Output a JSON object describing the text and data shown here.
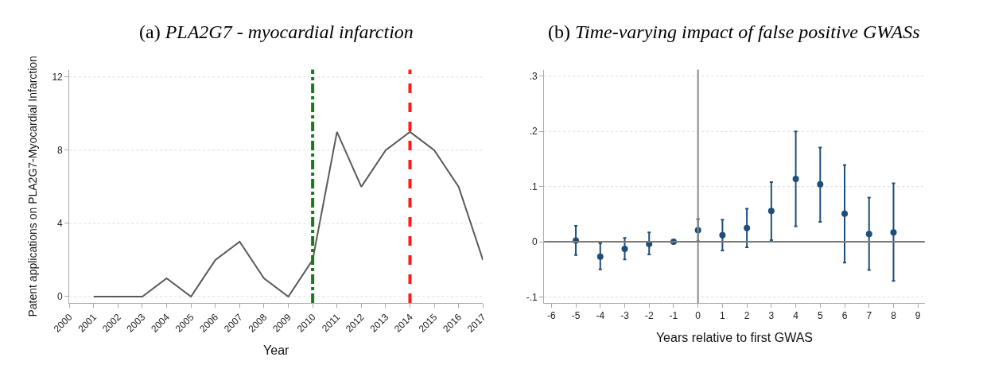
{
  "chart_data": [
    {
      "type": "line",
      "title": "(a) PLA2G7 - myocardial infarction",
      "xlabel": "Year",
      "ylabel": "Patent applications on PLA2G7-Myocardial Infarction",
      "x": [
        2001,
        2002,
        2003,
        2004,
        2005,
        2006,
        2007,
        2008,
        2009,
        2010,
        2011,
        2012,
        2013,
        2014,
        2015,
        2016,
        2017
      ],
      "series": [
        {
          "color": "#5a5a5a",
          "values": [
            0,
            0,
            0,
            1,
            0,
            2,
            3,
            1,
            0,
            2,
            9,
            6,
            8,
            9,
            8,
            6,
            2
          ]
        }
      ],
      "xlim": [
        2000,
        2017
      ],
      "xticks": [
        2000,
        2001,
        2002,
        2003,
        2004,
        2005,
        2006,
        2007,
        2008,
        2009,
        2010,
        2011,
        2012,
        2013,
        2014,
        2015,
        2016,
        2017
      ],
      "ylim": [
        -0.35,
        12.4
      ],
      "yticks": [
        0,
        4,
        8,
        12
      ],
      "grid": "y",
      "line_style": "solid",
      "marker": "none",
      "ref_lines": [
        {
          "axis": "x",
          "value": 2010,
          "color": "#1a7a1a",
          "line_style": "dashdot"
        },
        {
          "axis": "x",
          "value": 2014,
          "color": "#ff1a1a",
          "line_style": "dashed"
        }
      ]
    },
    {
      "type": "scatter",
      "title": "(b) Time-varying impact of false positive GWASs",
      "xlabel": "Years relative to first GWAS",
      "x": [
        -5,
        -4,
        -3,
        -2,
        -1,
        0,
        1,
        2,
        3,
        4,
        5,
        6,
        7,
        8
      ],
      "series": [
        {
          "color": "#1f4e79",
          "values": [
            0.002,
            -0.027,
            -0.013,
            -0.004,
            0,
            0.021,
            0.012,
            0.025,
            0.056,
            0.114,
            0.104,
            0.051,
            0.014,
            0.017
          ],
          "errors": [
            [
              -0.024,
              0.029
            ],
            [
              -0.05,
              -0.003
            ],
            [
              -0.032,
              0.007
            ],
            [
              -0.023,
              0.017
            ],
            null,
            [
              0.001,
              0.041
            ],
            [
              -0.016,
              0.04
            ],
            [
              -0.01,
              0.06
            ],
            [
              0.003,
              0.108
            ],
            [
              0.028,
              0.2
            ],
            [
              0.036,
              0.171
            ],
            [
              -0.038,
              0.139
            ],
            [
              -0.051,
              0.08
            ],
            [
              -0.071,
              0.106
            ]
          ]
        }
      ],
      "xlim": [
        -6.3,
        9.28
      ],
      "xticks": [
        -6,
        -5,
        -4,
        -3,
        -2,
        -1,
        0,
        1,
        2,
        3,
        4,
        5,
        6,
        7,
        8,
        9
      ],
      "ylim": [
        -0.111,
        0.312
      ],
      "yticks": [
        {
          "value": -0.1,
          "label": "-.1"
        },
        0,
        {
          "value": 0.1,
          "label": ".1"
        },
        {
          "value": 0.2,
          "label": ".2"
        },
        {
          "value": 0.3,
          "label": ".3"
        }
      ],
      "grid": "y",
      "marker": "circle",
      "ref_lines": [
        {
          "axis": "x",
          "value": 0,
          "color": "#8a8a8a",
          "line_style": "solid"
        },
        {
          "axis": "y",
          "value": 0,
          "color": "#7a7a7a",
          "line_style": "solid"
        }
      ]
    }
  ]
}
